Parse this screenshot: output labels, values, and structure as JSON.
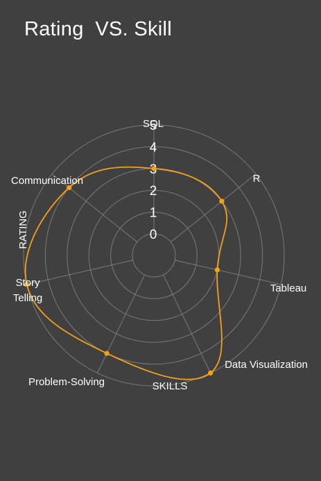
{
  "title": "Rating  VS. Skill",
  "chart_data": {
    "type": "radar",
    "title": "Rating  VS. Skill",
    "xlabel": "SKILLS",
    "ylabel": "RATING",
    "categories": [
      "SQL",
      "R",
      "Tableau",
      "Data Visualization",
      "Problem-Solving",
      "Story Telling",
      "Communication"
    ],
    "category_lines": {
      "SQL": [
        "SQL"
      ],
      "R": [
        "R"
      ],
      "Tableau": [
        "Tableau"
      ],
      "Data Visualization": [
        "Data Visualization"
      ],
      "Problem-Solving": [
        "Problem-Solving"
      ],
      "Story Telling": [
        "Story",
        "Telling"
      ],
      "Communication": [
        "Communication"
      ]
    },
    "series": [
      {
        "values": [
          3,
          3,
          2,
          5,
          4,
          5,
          4
        ]
      }
    ],
    "rlim": [
      0,
      5
    ],
    "ticks": [
      0,
      1,
      2,
      3,
      4,
      5
    ],
    "grid": true,
    "colors": {
      "line": "#F5A01A",
      "grid": "#7a7a7a",
      "background": "#404040"
    }
  }
}
